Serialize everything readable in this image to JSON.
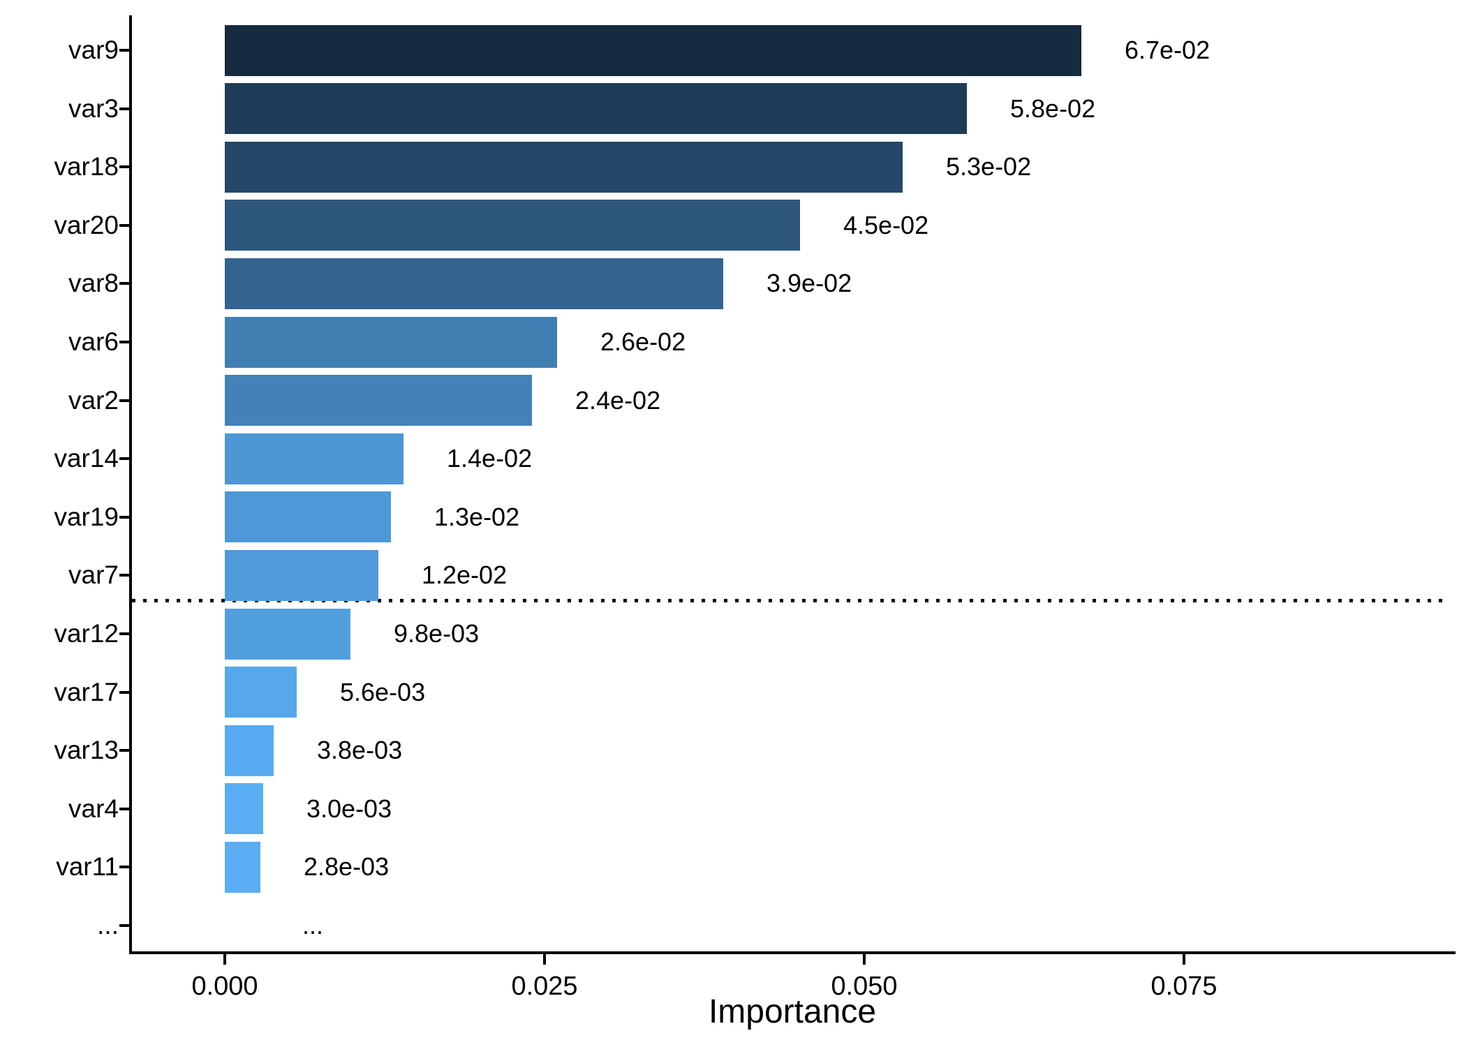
{
  "chart_data": {
    "type": "bar",
    "orientation": "horizontal",
    "title": "",
    "xlabel": "Importance",
    "ylabel": "",
    "categories": [
      "var9",
      "var3",
      "var18",
      "var20",
      "var8",
      "var6",
      "var2",
      "var14",
      "var19",
      "var7",
      "var12",
      "var17",
      "var13",
      "var4",
      "var11"
    ],
    "values": [
      0.067,
      0.058,
      0.053,
      0.045,
      0.039,
      0.026,
      0.024,
      0.014,
      0.013,
      0.012,
      0.0098,
      0.0056,
      0.0038,
      0.003,
      0.0028
    ],
    "value_labels": [
      "6.7e-02",
      "5.8e-02",
      "5.3e-02",
      "4.5e-02",
      "3.9e-02",
      "2.6e-02",
      "2.4e-02",
      "1.4e-02",
      "1.3e-02",
      "1.2e-02",
      "9.8e-03",
      "5.6e-03",
      "3.8e-03",
      "3.0e-03",
      "2.8e-03"
    ],
    "bar_colors": [
      "#162A40",
      "#1F3C59",
      "#254768",
      "#2D577D",
      "#33638E",
      "#417EB2",
      "#4382B8",
      "#4D96D4",
      "#4E98D7",
      "#4F9AD9",
      "#529FDF",
      "#56A7EB",
      "#58ABF0",
      "#59ADF2",
      "#59ADF3"
    ],
    "x_ticks": [
      "0.000",
      "0.025",
      "0.050",
      "0.075"
    ],
    "x_tick_values": [
      0,
      0.025,
      0.05,
      0.075
    ],
    "xlim": [
      0,
      0.096
    ],
    "grid": false,
    "legend": false,
    "threshold_line": {
      "style": "dotted",
      "color": "#000000",
      "position": "between var7 and var12"
    },
    "truncation_indicator": {
      "axis_label": "...",
      "panel_label": "..."
    }
  },
  "style": {
    "background": "#FFFFFF",
    "axis_color": "#000000",
    "text_color": "#000000"
  }
}
